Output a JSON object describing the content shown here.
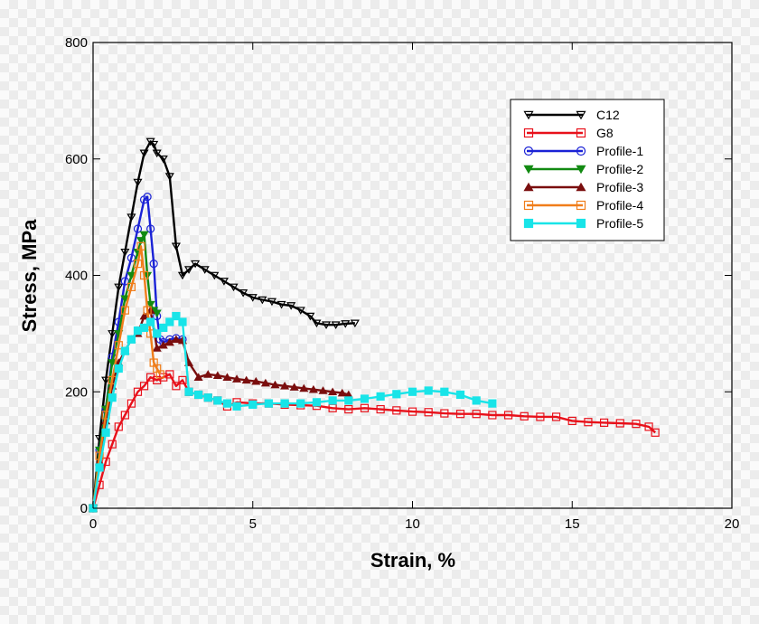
{
  "chart_data": {
    "type": "line",
    "title": "",
    "xlabel": "Strain, %",
    "ylabel": "Stress, MPa",
    "xlim": [
      0,
      20
    ],
    "ylim": [
      0,
      800
    ],
    "xticks": [
      0,
      5,
      10,
      15,
      20
    ],
    "yticks": [
      0,
      200,
      400,
      600,
      800
    ],
    "xtick_labels": [
      "0",
      "5",
      "10",
      "15",
      "20"
    ],
    "ytick_labels": [
      "0",
      "200",
      "400",
      "600",
      "800"
    ],
    "legend_position": "top-right",
    "series": [
      {
        "name": "C12",
        "color": "#000000",
        "marker": "triangle-down",
        "filled": false,
        "x": [
          0,
          0.2,
          0.4,
          0.6,
          0.8,
          1.0,
          1.2,
          1.4,
          1.6,
          1.8,
          1.9,
          2.0,
          2.2,
          2.4,
          2.6,
          2.8,
          3.0,
          3.2,
          3.5,
          3.8,
          4.1,
          4.4,
          4.7,
          5.0,
          5.3,
          5.6,
          5.9,
          6.2,
          6.5,
          6.8,
          7.0,
          7.3,
          7.6,
          7.9,
          8.2
        ],
        "y": [
          0,
          120,
          220,
          300,
          380,
          440,
          500,
          560,
          610,
          630,
          625,
          610,
          600,
          570,
          450,
          400,
          410,
          420,
          410,
          400,
          390,
          380,
          370,
          362,
          358,
          355,
          350,
          348,
          340,
          330,
          318,
          315,
          315,
          317,
          318
        ]
      },
      {
        "name": "G8",
        "color": "#e8101a",
        "marker": "square",
        "filled": false,
        "x": [
          0,
          0.2,
          0.4,
          0.6,
          0.8,
          1.0,
          1.2,
          1.4,
          1.6,
          1.8,
          2.0,
          2.2,
          2.4,
          2.6,
          2.8,
          3.0,
          3.3,
          3.6,
          3.9,
          4.2,
          4.5,
          5.0,
          5.5,
          6.0,
          6.5,
          7.0,
          7.5,
          8.0,
          8.5,
          9.0,
          9.5,
          10.0,
          10.5,
          11.0,
          11.5,
          12.0,
          12.5,
          13.0,
          13.5,
          14.0,
          14.5,
          15.0,
          15.5,
          16.0,
          16.5,
          17.0,
          17.4,
          17.6
        ],
        "y": [
          0,
          40,
          80,
          110,
          140,
          160,
          180,
          200,
          210,
          225,
          220,
          225,
          230,
          210,
          220,
          200,
          195,
          190,
          185,
          175,
          182,
          180,
          180,
          178,
          177,
          176,
          172,
          170,
          172,
          170,
          168,
          166,
          165,
          163,
          162,
          162,
          160,
          160,
          158,
          157,
          157,
          150,
          148,
          147,
          146,
          145,
          140,
          130
        ]
      },
      {
        "name": "Profile-1",
        "color": "#1a22d6",
        "marker": "circle",
        "filled": false,
        "x": [
          0,
          0.2,
          0.4,
          0.6,
          0.8,
          1.0,
          1.2,
          1.4,
          1.6,
          1.7,
          1.8,
          1.9,
          2.0,
          2.1,
          2.2,
          2.4,
          2.6,
          2.8
        ],
        "y": [
          0,
          100,
          170,
          260,
          320,
          390,
          430,
          480,
          530,
          535,
          480,
          420,
          330,
          290,
          285,
          290,
          292,
          290
        ]
      },
      {
        "name": "Profile-2",
        "color": "#128a12",
        "marker": "triangle-down",
        "filled": true,
        "x": [
          0,
          0.2,
          0.4,
          0.6,
          0.8,
          1.0,
          1.2,
          1.4,
          1.5,
          1.6,
          1.7,
          1.8,
          1.9,
          2.0
        ],
        "y": [
          0,
          100,
          170,
          250,
          300,
          360,
          400,
          440,
          460,
          470,
          400,
          350,
          340,
          335
        ]
      },
      {
        "name": "Profile-3",
        "color": "#7a0e0e",
        "marker": "triangle-up",
        "filled": true,
        "x": [
          0,
          0.2,
          0.4,
          0.6,
          0.8,
          1.0,
          1.2,
          1.4,
          1.6,
          1.8,
          2.0,
          2.2,
          2.4,
          2.6,
          2.8,
          3.0,
          3.3,
          3.6,
          3.9,
          4.2,
          4.5,
          4.8,
          5.1,
          5.4,
          5.7,
          6.0,
          6.3,
          6.6,
          6.9,
          7.2,
          7.5,
          7.8,
          8.0
        ],
        "y": [
          0,
          80,
          150,
          210,
          250,
          270,
          290,
          300,
          330,
          340,
          275,
          280,
          285,
          290,
          288,
          250,
          225,
          230,
          228,
          225,
          222,
          220,
          218,
          215,
          212,
          210,
          208,
          206,
          204,
          202,
          200,
          198,
          195
        ]
      },
      {
        "name": "Profile-4",
        "color": "#f07d1a",
        "marker": "square",
        "filled": false,
        "x": [
          0,
          0.2,
          0.4,
          0.6,
          0.8,
          1.0,
          1.2,
          1.4,
          1.5,
          1.6,
          1.7,
          1.8,
          1.9,
          2.0,
          2.1
        ],
        "y": [
          0,
          90,
          160,
          220,
          280,
          340,
          380,
          420,
          450,
          400,
          340,
          300,
          250,
          240,
          230
        ]
      },
      {
        "name": "Profile-5",
        "color": "#18e4e8",
        "marker": "square",
        "filled": true,
        "x": [
          0,
          0.2,
          0.4,
          0.6,
          0.8,
          1.0,
          1.2,
          1.4,
          1.6,
          1.8,
          2.0,
          2.2,
          2.4,
          2.6,
          2.8,
          3.0,
          3.3,
          3.6,
          3.9,
          4.2,
          4.5,
          5.0,
          5.5,
          6.0,
          6.5,
          7.0,
          7.5,
          8.0,
          8.5,
          9.0,
          9.5,
          10.0,
          10.5,
          11.0,
          11.5,
          12.0,
          12.5
        ],
        "y": [
          0,
          70,
          130,
          190,
          240,
          270,
          290,
          305,
          310,
          320,
          300,
          310,
          320,
          330,
          320,
          200,
          195,
          190,
          185,
          180,
          175,
          178,
          180,
          180,
          180,
          182,
          185,
          185,
          188,
          192,
          196,
          200,
          202,
          200,
          195,
          185,
          180
        ]
      }
    ]
  }
}
